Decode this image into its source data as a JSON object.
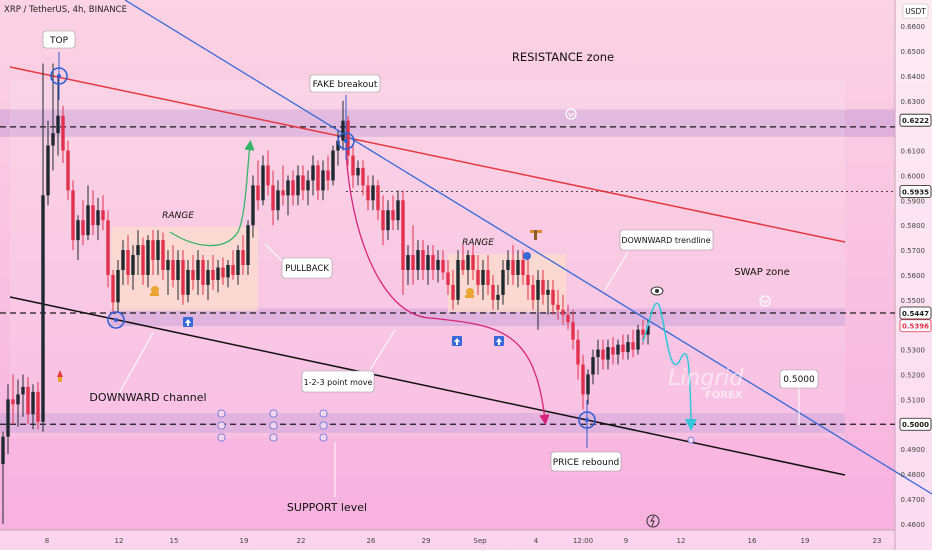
{
  "header": {
    "symbol_line": "XRP / TetherUS, 4h, BINANCE",
    "currency": "USDT"
  },
  "colors": {
    "bg_top": "#fbd3e3",
    "bg_bottom": "#f7b0df",
    "up_candle": "#1f2a30",
    "down_candle": "#e2314c",
    "zone_band": "#c79ad6",
    "resistance_line": "#e4383f",
    "trendline": "#3a6ad8",
    "channel_line": "#111111",
    "range_box": "#fde0c8",
    "curve_pink": "#d8237a",
    "curve_green": "#36b56a",
    "curve_cyan": "#31c6d9",
    "marker_blue": "#2f5fd3"
  },
  "chart_data": {
    "type": "candlestick",
    "y_axis_side": "right",
    "ylim": [
      0.4575,
      0.6705
    ],
    "y_ticks": [
      0.66,
      0.65,
      0.64,
      0.63,
      0.61,
      0.6,
      0.59,
      0.58,
      0.57,
      0.56,
      0.55,
      0.53,
      0.52,
      0.51,
      0.49,
      0.48,
      0.47,
      0.46
    ],
    "x_ticks": [
      "8",
      "12",
      "15",
      "19",
      "22",
      "26",
      "29",
      "Sep",
      "4",
      "12:00",
      "9",
      "12",
      "16",
      "19",
      "23"
    ],
    "price_labels": [
      {
        "value": 0.6222,
        "text": "0.6222",
        "style": "dark"
      },
      {
        "value": 0.5935,
        "text": "0.5935",
        "style": "dark"
      },
      {
        "value": 0.5447,
        "text": "0.5447",
        "style": "dark"
      },
      {
        "value": 0.5396,
        "text": "0.5396",
        "style": "red"
      },
      {
        "value": 0.5,
        "text": "0.5000",
        "style": "dark"
      }
    ],
    "zones": [
      {
        "name": "resistance",
        "low": 0.6155,
        "high": 0.6265
      },
      {
        "name": "swap",
        "low": 0.5395,
        "high": 0.5465
      },
      {
        "name": "support",
        "low": 0.4965,
        "high": 0.5045
      }
    ],
    "reference_lines": [
      {
        "name": "resistance-level",
        "value": 0.6195,
        "style": "dashed"
      },
      {
        "name": "swap-level",
        "value": 0.5447,
        "style": "dashed"
      },
      {
        "name": "support-level",
        "value": 0.5,
        "style": "dashed"
      },
      {
        "name": "breakout-level",
        "value": 0.5935,
        "style": "dotted"
      }
    ],
    "candles": [
      {
        "x": 3,
        "o": 0.484,
        "h": 0.497,
        "l": 0.46,
        "c": 0.495
      },
      {
        "x": 8,
        "o": 0.495,
        "h": 0.516,
        "l": 0.488,
        "c": 0.51
      },
      {
        "x": 13,
        "o": 0.51,
        "h": 0.52,
        "l": 0.5,
        "c": 0.508
      },
      {
        "x": 18,
        "o": 0.508,
        "h": 0.518,
        "l": 0.499,
        "c": 0.512
      },
      {
        "x": 23,
        "o": 0.512,
        "h": 0.52,
        "l": 0.503,
        "c": 0.515
      },
      {
        "x": 28,
        "o": 0.515,
        "h": 0.519,
        "l": 0.5,
        "c": 0.504
      },
      {
        "x": 33,
        "o": 0.504,
        "h": 0.516,
        "l": 0.498,
        "c": 0.513
      },
      {
        "x": 38,
        "o": 0.513,
        "h": 0.517,
        "l": 0.498,
        "c": 0.501
      },
      {
        "x": 43,
        "o": 0.501,
        "h": 0.645,
        "l": 0.497,
        "c": 0.592
      },
      {
        "x": 48,
        "o": 0.592,
        "h": 0.622,
        "l": 0.588,
        "c": 0.612
      },
      {
        "x": 53,
        "o": 0.612,
        "h": 0.645,
        "l": 0.602,
        "c": 0.617
      },
      {
        "x": 58,
        "o": 0.617,
        "h": 0.64,
        "l": 0.608,
        "c": 0.624
      },
      {
        "x": 63,
        "o": 0.624,
        "h": 0.628,
        "l": 0.605,
        "c": 0.61
      },
      {
        "x": 68,
        "o": 0.61,
        "h": 0.614,
        "l": 0.59,
        "c": 0.594
      },
      {
        "x": 73,
        "o": 0.594,
        "h": 0.598,
        "l": 0.57,
        "c": 0.574
      },
      {
        "x": 78,
        "o": 0.574,
        "h": 0.584,
        "l": 0.566,
        "c": 0.582
      },
      {
        "x": 83,
        "o": 0.582,
        "h": 0.59,
        "l": 0.572,
        "c": 0.576
      },
      {
        "x": 88,
        "o": 0.576,
        "h": 0.596,
        "l": 0.574,
        "c": 0.588
      },
      {
        "x": 93,
        "o": 0.588,
        "h": 0.594,
        "l": 0.576,
        "c": 0.58
      },
      {
        "x": 98,
        "o": 0.58,
        "h": 0.591,
        "l": 0.574,
        "c": 0.586
      },
      {
        "x": 103,
        "o": 0.586,
        "h": 0.592,
        "l": 0.578,
        "c": 0.582
      },
      {
        "x": 108,
        "o": 0.582,
        "h": 0.586,
        "l": 0.555,
        "c": 0.56
      },
      {
        "x": 113,
        "o": 0.56,
        "h": 0.562,
        "l": 0.545,
        "c": 0.549
      },
      {
        "x": 118,
        "o": 0.549,
        "h": 0.566,
        "l": 0.545,
        "c": 0.562
      },
      {
        "x": 123,
        "o": 0.562,
        "h": 0.574,
        "l": 0.556,
        "c": 0.57
      },
      {
        "x": 128,
        "o": 0.57,
        "h": 0.576,
        "l": 0.556,
        "c": 0.56
      },
      {
        "x": 133,
        "o": 0.56,
        "h": 0.572,
        "l": 0.554,
        "c": 0.568
      },
      {
        "x": 138,
        "o": 0.568,
        "h": 0.578,
        "l": 0.56,
        "c": 0.572
      },
      {
        "x": 143,
        "o": 0.572,
        "h": 0.575,
        "l": 0.556,
        "c": 0.56
      },
      {
        "x": 148,
        "o": 0.56,
        "h": 0.576,
        "l": 0.555,
        "c": 0.574
      },
      {
        "x": 153,
        "o": 0.574,
        "h": 0.578,
        "l": 0.56,
        "c": 0.566
      },
      {
        "x": 158,
        "o": 0.566,
        "h": 0.578,
        "l": 0.56,
        "c": 0.574
      },
      {
        "x": 163,
        "o": 0.574,
        "h": 0.577,
        "l": 0.558,
        "c": 0.562
      },
      {
        "x": 168,
        "o": 0.562,
        "h": 0.57,
        "l": 0.552,
        "c": 0.566
      },
      {
        "x": 173,
        "o": 0.566,
        "h": 0.572,
        "l": 0.555,
        "c": 0.558
      },
      {
        "x": 178,
        "o": 0.558,
        "h": 0.57,
        "l": 0.55,
        "c": 0.566
      },
      {
        "x": 183,
        "o": 0.566,
        "h": 0.57,
        "l": 0.548,
        "c": 0.552
      },
      {
        "x": 188,
        "o": 0.552,
        "h": 0.566,
        "l": 0.549,
        "c": 0.562
      },
      {
        "x": 193,
        "o": 0.562,
        "h": 0.568,
        "l": 0.554,
        "c": 0.558
      },
      {
        "x": 198,
        "o": 0.558,
        "h": 0.57,
        "l": 0.552,
        "c": 0.566
      },
      {
        "x": 203,
        "o": 0.566,
        "h": 0.568,
        "l": 0.552,
        "c": 0.556
      },
      {
        "x": 208,
        "o": 0.556,
        "h": 0.566,
        "l": 0.55,
        "c": 0.562
      },
      {
        "x": 213,
        "o": 0.562,
        "h": 0.568,
        "l": 0.554,
        "c": 0.558
      },
      {
        "x": 218,
        "o": 0.558,
        "h": 0.566,
        "l": 0.553,
        "c": 0.563
      },
      {
        "x": 223,
        "o": 0.563,
        "h": 0.567,
        "l": 0.556,
        "c": 0.559
      },
      {
        "x": 228,
        "o": 0.559,
        "h": 0.566,
        "l": 0.555,
        "c": 0.564
      },
      {
        "x": 233,
        "o": 0.564,
        "h": 0.57,
        "l": 0.558,
        "c": 0.56
      },
      {
        "x": 238,
        "o": 0.56,
        "h": 0.572,
        "l": 0.556,
        "c": 0.57
      },
      {
        "x": 243,
        "o": 0.57,
        "h": 0.576,
        "l": 0.56,
        "c": 0.564
      },
      {
        "x": 248,
        "o": 0.564,
        "h": 0.582,
        "l": 0.56,
        "c": 0.58
      },
      {
        "x": 253,
        "o": 0.58,
        "h": 0.6,
        "l": 0.575,
        "c": 0.596
      },
      {
        "x": 258,
        "o": 0.596,
        "h": 0.606,
        "l": 0.586,
        "c": 0.59
      },
      {
        "x": 263,
        "o": 0.59,
        "h": 0.608,
        "l": 0.588,
        "c": 0.604
      },
      {
        "x": 268,
        "o": 0.604,
        "h": 0.61,
        "l": 0.592,
        "c": 0.596
      },
      {
        "x": 273,
        "o": 0.596,
        "h": 0.602,
        "l": 0.58,
        "c": 0.586
      },
      {
        "x": 278,
        "o": 0.586,
        "h": 0.598,
        "l": 0.582,
        "c": 0.594
      },
      {
        "x": 283,
        "o": 0.594,
        "h": 0.604,
        "l": 0.588,
        "c": 0.592
      },
      {
        "x": 288,
        "o": 0.592,
        "h": 0.6,
        "l": 0.584,
        "c": 0.598
      },
      {
        "x": 293,
        "o": 0.598,
        "h": 0.602,
        "l": 0.588,
        "c": 0.592
      },
      {
        "x": 298,
        "o": 0.592,
        "h": 0.604,
        "l": 0.588,
        "c": 0.6
      },
      {
        "x": 303,
        "o": 0.6,
        "h": 0.604,
        "l": 0.59,
        "c": 0.594
      },
      {
        "x": 308,
        "o": 0.594,
        "h": 0.602,
        "l": 0.588,
        "c": 0.598
      },
      {
        "x": 313,
        "o": 0.598,
        "h": 0.608,
        "l": 0.592,
        "c": 0.604
      },
      {
        "x": 318,
        "o": 0.604,
        "h": 0.606,
        "l": 0.59,
        "c": 0.594
      },
      {
        "x": 323,
        "o": 0.594,
        "h": 0.606,
        "l": 0.59,
        "c": 0.602
      },
      {
        "x": 328,
        "o": 0.602,
        "h": 0.608,
        "l": 0.594,
        "c": 0.598
      },
      {
        "x": 333,
        "o": 0.598,
        "h": 0.612,
        "l": 0.596,
        "c": 0.61
      },
      {
        "x": 338,
        "o": 0.61,
        "h": 0.618,
        "l": 0.604,
        "c": 0.614
      },
      {
        "x": 343,
        "o": 0.614,
        "h": 0.63,
        "l": 0.61,
        "c": 0.622
      },
      {
        "x": 348,
        "o": 0.622,
        "h": 0.624,
        "l": 0.604,
        "c": 0.608
      },
      {
        "x": 353,
        "o": 0.608,
        "h": 0.612,
        "l": 0.595,
        "c": 0.6
      },
      {
        "x": 358,
        "o": 0.6,
        "h": 0.606,
        "l": 0.596,
        "c": 0.603
      },
      {
        "x": 363,
        "o": 0.603,
        "h": 0.606,
        "l": 0.592,
        "c": 0.596
      },
      {
        "x": 368,
        "o": 0.596,
        "h": 0.6,
        "l": 0.586,
        "c": 0.59
      },
      {
        "x": 373,
        "o": 0.59,
        "h": 0.6,
        "l": 0.586,
        "c": 0.596
      },
      {
        "x": 378,
        "o": 0.596,
        "h": 0.598,
        "l": 0.582,
        "c": 0.586
      },
      {
        "x": 383,
        "o": 0.586,
        "h": 0.592,
        "l": 0.572,
        "c": 0.578
      },
      {
        "x": 388,
        "o": 0.578,
        "h": 0.59,
        "l": 0.574,
        "c": 0.586
      },
      {
        "x": 393,
        "o": 0.586,
        "h": 0.592,
        "l": 0.578,
        "c": 0.582
      },
      {
        "x": 398,
        "o": 0.582,
        "h": 0.594,
        "l": 0.578,
        "c": 0.59
      },
      {
        "x": 403,
        "o": 0.59,
        "h": 0.594,
        "l": 0.552,
        "c": 0.562
      },
      {
        "x": 408,
        "o": 0.562,
        "h": 0.572,
        "l": 0.556,
        "c": 0.568
      },
      {
        "x": 413,
        "o": 0.568,
        "h": 0.58,
        "l": 0.556,
        "c": 0.562
      },
      {
        "x": 418,
        "o": 0.562,
        "h": 0.574,
        "l": 0.558,
        "c": 0.57
      },
      {
        "x": 423,
        "o": 0.57,
        "h": 0.574,
        "l": 0.558,
        "c": 0.562
      },
      {
        "x": 428,
        "o": 0.562,
        "h": 0.572,
        "l": 0.556,
        "c": 0.568
      },
      {
        "x": 433,
        "o": 0.568,
        "h": 0.572,
        "l": 0.558,
        "c": 0.562
      },
      {
        "x": 438,
        "o": 0.562,
        "h": 0.57,
        "l": 0.557,
        "c": 0.566
      },
      {
        "x": 443,
        "o": 0.566,
        "h": 0.57,
        "l": 0.558,
        "c": 0.561
      },
      {
        "x": 448,
        "o": 0.561,
        "h": 0.566,
        "l": 0.552,
        "c": 0.556
      },
      {
        "x": 453,
        "o": 0.556,
        "h": 0.562,
        "l": 0.546,
        "c": 0.55
      },
      {
        "x": 458,
        "o": 0.55,
        "h": 0.57,
        "l": 0.548,
        "c": 0.566
      },
      {
        "x": 463,
        "o": 0.566,
        "h": 0.572,
        "l": 0.56,
        "c": 0.562
      },
      {
        "x": 468,
        "o": 0.562,
        "h": 0.57,
        "l": 0.556,
        "c": 0.568
      },
      {
        "x": 473,
        "o": 0.568,
        "h": 0.572,
        "l": 0.558,
        "c": 0.562
      },
      {
        "x": 478,
        "o": 0.562,
        "h": 0.568,
        "l": 0.552,
        "c": 0.556
      },
      {
        "x": 483,
        "o": 0.556,
        "h": 0.566,
        "l": 0.55,
        "c": 0.562
      },
      {
        "x": 488,
        "o": 0.562,
        "h": 0.568,
        "l": 0.552,
        "c": 0.556
      },
      {
        "x": 493,
        "o": 0.556,
        "h": 0.56,
        "l": 0.546,
        "c": 0.55
      },
      {
        "x": 498,
        "o": 0.55,
        "h": 0.556,
        "l": 0.546,
        "c": 0.552
      },
      {
        "x": 503,
        "o": 0.552,
        "h": 0.566,
        "l": 0.548,
        "c": 0.562
      },
      {
        "x": 508,
        "o": 0.562,
        "h": 0.57,
        "l": 0.556,
        "c": 0.566
      },
      {
        "x": 513,
        "o": 0.566,
        "h": 0.572,
        "l": 0.556,
        "c": 0.56
      },
      {
        "x": 518,
        "o": 0.56,
        "h": 0.57,
        "l": 0.555,
        "c": 0.566
      },
      {
        "x": 523,
        "o": 0.566,
        "h": 0.57,
        "l": 0.556,
        "c": 0.56
      },
      {
        "x": 528,
        "o": 0.56,
        "h": 0.566,
        "l": 0.55,
        "c": 0.556
      },
      {
        "x": 533,
        "o": 0.556,
        "h": 0.56,
        "l": 0.546,
        "c": 0.55
      },
      {
        "x": 538,
        "o": 0.55,
        "h": 0.562,
        "l": 0.538,
        "c": 0.558
      },
      {
        "x": 543,
        "o": 0.558,
        "h": 0.562,
        "l": 0.548,
        "c": 0.552
      },
      {
        "x": 548,
        "o": 0.552,
        "h": 0.558,
        "l": 0.544,
        "c": 0.554
      },
      {
        "x": 553,
        "o": 0.554,
        "h": 0.558,
        "l": 0.544,
        "c": 0.548
      },
      {
        "x": 558,
        "o": 0.548,
        "h": 0.554,
        "l": 0.542,
        "c": 0.546
      },
      {
        "x": 563,
        "o": 0.546,
        "h": 0.552,
        "l": 0.54,
        "c": 0.544
      },
      {
        "x": 568,
        "o": 0.544,
        "h": 0.548,
        "l": 0.538,
        "c": 0.541
      },
      {
        "x": 573,
        "o": 0.541,
        "h": 0.546,
        "l": 0.53,
        "c": 0.534
      },
      {
        "x": 578,
        "o": 0.534,
        "h": 0.538,
        "l": 0.518,
        "c": 0.524
      },
      {
        "x": 583,
        "o": 0.524,
        "h": 0.528,
        "l": 0.506,
        "c": 0.512
      },
      {
        "x": 588,
        "o": 0.512,
        "h": 0.522,
        "l": 0.508,
        "c": 0.52
      },
      {
        "x": 593,
        "o": 0.52,
        "h": 0.53,
        "l": 0.516,
        "c": 0.527
      },
      {
        "x": 598,
        "o": 0.527,
        "h": 0.534,
        "l": 0.52,
        "c": 0.53
      },
      {
        "x": 603,
        "o": 0.53,
        "h": 0.534,
        "l": 0.522,
        "c": 0.526
      },
      {
        "x": 608,
        "o": 0.526,
        "h": 0.534,
        "l": 0.522,
        "c": 0.531
      },
      {
        "x": 613,
        "o": 0.531,
        "h": 0.535,
        "l": 0.524,
        "c": 0.528
      },
      {
        "x": 618,
        "o": 0.528,
        "h": 0.534,
        "l": 0.524,
        "c": 0.532
      },
      {
        "x": 623,
        "o": 0.532,
        "h": 0.536,
        "l": 0.526,
        "c": 0.529
      },
      {
        "x": 628,
        "o": 0.529,
        "h": 0.536,
        "l": 0.526,
        "c": 0.533
      },
      {
        "x": 633,
        "o": 0.533,
        "h": 0.538,
        "l": 0.527,
        "c": 0.53
      },
      {
        "x": 638,
        "o": 0.53,
        "h": 0.54,
        "l": 0.528,
        "c": 0.538
      },
      {
        "x": 643,
        "o": 0.538,
        "h": 0.542,
        "l": 0.532,
        "c": 0.536
      },
      {
        "x": 648,
        "o": 0.536,
        "h": 0.542,
        "l": 0.532,
        "c": 0.5396
      }
    ],
    "annotations": {
      "top": "TOP",
      "fake_breakout": "FAKE breakout",
      "resistance": "RESISTANCE zone",
      "range_1": "RANGE",
      "range_2": "RANGE",
      "pullback": "PULLBACK",
      "downward_trendline": "DOWNWARD trendline",
      "swap": "SWAP zone",
      "downward_channel": "DOWNWARD channel",
      "point_move": "1-2-3 point move",
      "price_rebound": "PRICE rebound",
      "support": "SUPPORT level",
      "target": "0.5000"
    },
    "watermark": {
      "name": "Lingrid",
      "sub": "FOREX"
    }
  }
}
